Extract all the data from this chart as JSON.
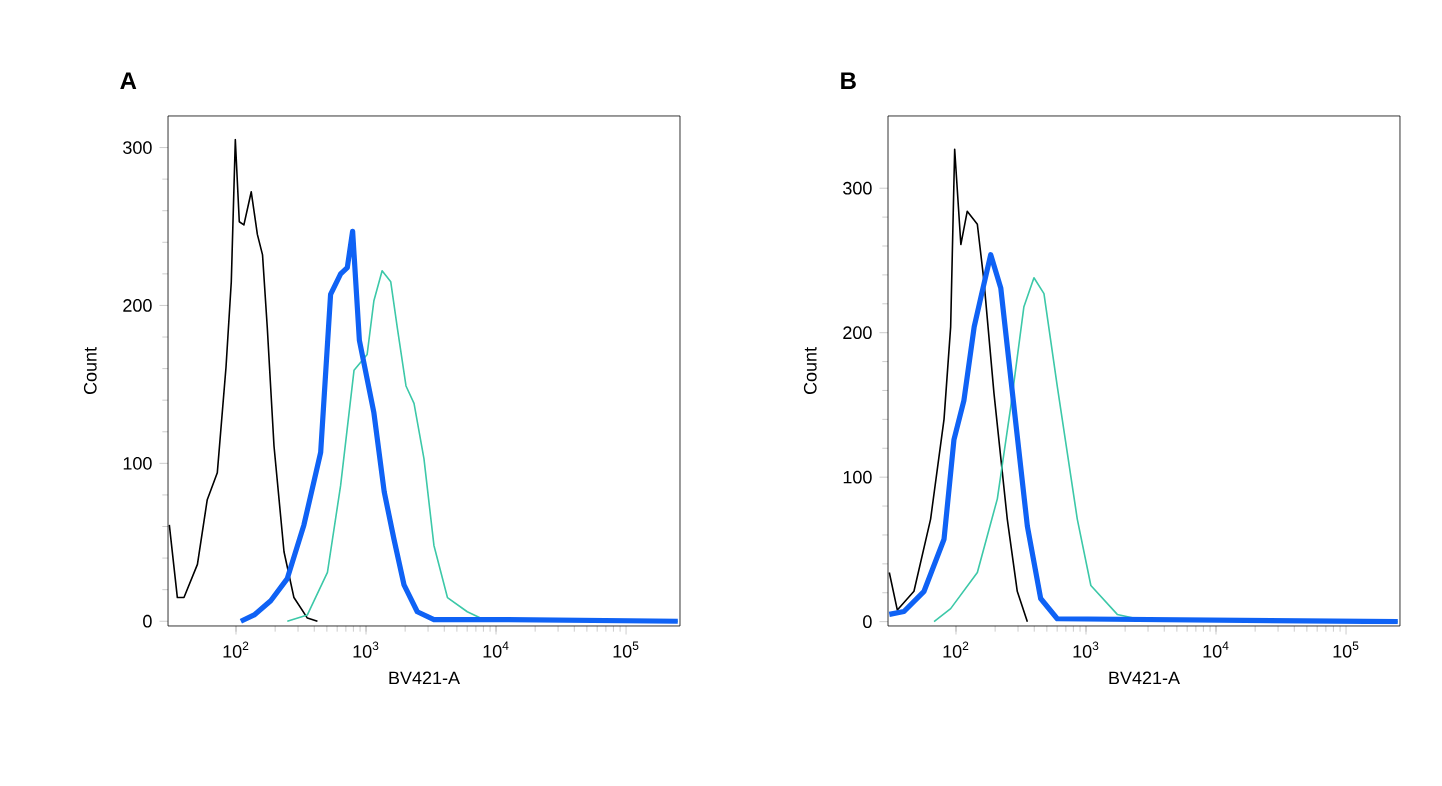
{
  "chart_data": [
    {
      "type": "line",
      "title": "A",
      "xlabel": "BV421-A",
      "ylabel": "Count",
      "log": "x",
      "grid": false,
      "marker": "none",
      "line_style": "solid",
      "xlim": [
        30,
        260000
      ],
      "ylim": [
        -3,
        320
      ],
      "xticks": [
        {
          "value": 100,
          "label": "10$^{2}$"
        },
        {
          "value": 1000,
          "label": "10$^{3}$"
        },
        {
          "value": 10000,
          "label": "10$^{4}$"
        },
        {
          "value": 100000,
          "label": "10$^{5}$"
        }
      ],
      "yticks": [
        0,
        100,
        200,
        300
      ],
      "series": [
        {
          "color": "#000000",
          "x": [
            30.7,
            35.4,
            39.8,
            50.5,
            60.1,
            71.8,
            83.8,
            92,
            98.8,
            106,
            115,
            131,
            146,
            160,
            174,
            196,
            234,
            279,
            354,
            423
          ],
          "values": [
            61,
            15,
            15,
            36,
            77,
            94,
            161,
            215,
            305,
            253,
            251,
            272,
            245,
            232,
            186,
            111,
            44,
            15,
            2,
            0
          ]
        },
        {
          "color": "#3cc8a8",
          "x": [
            248,
            354,
            505,
            638,
            809,
            1020,
            1150,
            1330,
            1550,
            1740,
            2030,
            2340,
            2790,
            3330,
            4230,
            6010,
            8570,
            250000
          ],
          "values": [
            0,
            4,
            31,
            86,
            159,
            169,
            203,
            222,
            215,
            186,
            149,
            138,
            103,
            48,
            15,
            6,
            0,
            0
          ]
        },
        {
          "color": "#0f62f5",
          "x": [
            109,
            138,
            185,
            248,
            333,
            448,
            534,
            638,
            718,
            789,
            889,
            1150,
            1380,
            1640,
            1960,
            2480,
            3330,
            12200,
            250000
          ],
          "values": [
            0,
            4,
            13,
            27,
            61,
            107,
            207,
            220,
            224,
            247,
            178,
            132,
            82,
            52,
            23,
            6,
            1,
            1,
            0
          ]
        }
      ]
    },
    {
      "type": "line",
      "title": "B",
      "xlabel": "BV421-A",
      "ylabel": "Count",
      "log": "x",
      "grid": false,
      "marker": "none",
      "line_style": "solid",
      "xlim": [
        30,
        260000
      ],
      "ylim": [
        -3,
        350
      ],
      "xticks": [
        {
          "value": 100,
          "label": "10$^{2}$"
        },
        {
          "value": 1000,
          "label": "10$^{3}$"
        },
        {
          "value": 10000,
          "label": "10$^{4}$"
        },
        {
          "value": 100000,
          "label": "10$^{5}$"
        }
      ],
      "yticks": [
        0,
        100,
        200,
        300
      ],
      "series": [
        {
          "color": "#000000",
          "x": [
            30.7,
            35.4,
            47.5,
            63.8,
            80.9,
            91,
            97.7,
            109,
            122,
            146,
            164,
            196,
            248,
            296,
            354
          ],
          "values": [
            34,
            8,
            21,
            71,
            140,
            204,
            327,
            261,
            284,
            275,
            236,
            158,
            71,
            21,
            0
          ]
        },
        {
          "color": "#3cc8a8",
          "x": [
            67.8,
            91,
            146,
            208,
            264,
            333,
            398,
            475,
            601,
            857,
            1090,
            1740,
            2790,
            250000
          ],
          "values": [
            0,
            9,
            34,
            85,
            149,
            218,
            238,
            227,
            163,
            71,
            25,
            5,
            1,
            0
          ]
        },
        {
          "color": "#0f62f5",
          "x": [
            30.7,
            39.8,
            56.8,
            80.9,
            96.5,
            115,
            138,
            155,
            185,
            221,
            279,
            354,
            448,
            601,
            250000
          ],
          "values": [
            5,
            7,
            21,
            57,
            126,
            153,
            204,
            224,
            254,
            231,
            149,
            66,
            16,
            2,
            0
          ]
        }
      ]
    }
  ]
}
